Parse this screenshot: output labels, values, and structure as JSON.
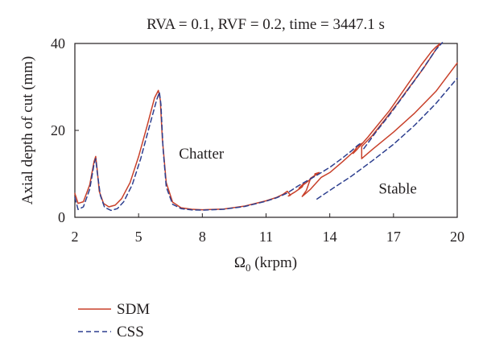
{
  "chart_data": {
    "type": "line",
    "title": "RVA = 0.1, RVF = 0.2, time = 3447.1 s",
    "xlabel_main": "Ω",
    "xlabel_sub": "0",
    "xlabel_unit": " (krpm)",
    "ylabel": "Axial depth of cut (mm)",
    "xlim": [
      2,
      20
    ],
    "ylim": [
      0,
      40
    ],
    "xticks": [
      2,
      5,
      8,
      11,
      14,
      17,
      20
    ],
    "yticks": [
      0,
      20,
      40
    ],
    "xtick_labels": [
      "2",
      "5",
      "8",
      "11",
      "14",
      "17",
      "20"
    ],
    "ytick_labels": [
      "0",
      "20",
      "40"
    ],
    "grid": false,
    "legend_position": "bottom-left",
    "annotations": [
      {
        "text": "Chatter",
        "x": 6.9,
        "y": 13.5
      },
      {
        "text": "Stable",
        "x": 16.3,
        "y": 5.5
      }
    ],
    "series": [
      {
        "name": "SDM",
        "color": "#c8402a",
        "dash": "solid",
        "segments": [
          [
            [
              2.0,
              5.5
            ],
            [
              2.15,
              3.2
            ],
            [
              2.4,
              3.6
            ],
            [
              2.7,
              7.5
            ],
            [
              2.9,
              12.8
            ],
            [
              2.98,
              14.0
            ],
            [
              3.05,
              11.0
            ],
            [
              3.15,
              6.0
            ],
            [
              3.35,
              3.2
            ],
            [
              3.6,
              2.4
            ],
            [
              3.9,
              2.8
            ],
            [
              4.2,
              4.3
            ],
            [
              4.6,
              8.0
            ],
            [
              5.0,
              14.0
            ],
            [
              5.4,
              21.0
            ],
            [
              5.75,
              27.5
            ],
            [
              5.93,
              29.2
            ],
            [
              6.02,
              27.0
            ],
            [
              6.12,
              18.0
            ],
            [
              6.3,
              8.0
            ],
            [
              6.6,
              3.5
            ],
            [
              7.0,
              2.2
            ],
            [
              7.5,
              1.85
            ],
            [
              8.0,
              1.75
            ],
            [
              9.0,
              1.9
            ],
            [
              10.0,
              2.6
            ],
            [
              11.0,
              3.8
            ],
            [
              11.5,
              4.6
            ],
            [
              11.8,
              5.3
            ],
            [
              12.0,
              6.0
            ],
            [
              12.15,
              5.1
            ],
            [
              12.05,
              4.9
            ],
            [
              12.35,
              5.8
            ],
            [
              12.7,
              7.0
            ],
            [
              12.8,
              7.9
            ],
            [
              12.55,
              6.7
            ],
            [
              12.9,
              8.0
            ],
            [
              13.3,
              9.6
            ],
            [
              13.3,
              10.0
            ],
            [
              13.5,
              10.3
            ],
            [
              13.1,
              9.0
            ],
            [
              12.9,
              6.2
            ],
            [
              12.7,
              4.8
            ],
            [
              13.1,
              6.5
            ],
            [
              13.6,
              9.2
            ],
            [
              14.0,
              10.3
            ],
            [
              14.6,
              12.8
            ],
            [
              15.1,
              15.0
            ],
            [
              15.2,
              15.6
            ],
            [
              15.3,
              16.3
            ],
            [
              15.5,
              17.0
            ],
            [
              15.3,
              15.7
            ],
            [
              15.1,
              14.7
            ],
            [
              15.35,
              16.0
            ],
            [
              15.8,
              18.5
            ],
            [
              16.3,
              21.5
            ],
            [
              16.8,
              24.5
            ],
            [
              17.3,
              28.0
            ],
            [
              17.8,
              31.5
            ],
            [
              18.3,
              35.0
            ],
            [
              18.8,
              38.2
            ],
            [
              19.0,
              39.2
            ],
            [
              19.2,
              40.0
            ],
            [
              19.05,
              39.0
            ],
            [
              18.4,
              34.2
            ],
            [
              17.8,
              30.3
            ],
            [
              17.2,
              26.3
            ],
            [
              16.6,
              22.5
            ],
            [
              16.0,
              18.8
            ],
            [
              15.5,
              16.3
            ],
            [
              15.5,
              13.5
            ],
            [
              16.0,
              15.6
            ],
            [
              17.0,
              19.6
            ],
            [
              18.0,
              24.0
            ],
            [
              19.0,
              29.0
            ],
            [
              20.0,
              35.5
            ]
          ]
        ]
      },
      {
        "name": "CSS",
        "color": "#2d3f8f",
        "dash": "dashed",
        "segments": [
          [
            [
              2.0,
              4.6
            ],
            [
              2.15,
              1.8
            ],
            [
              2.4,
              2.4
            ],
            [
              2.7,
              6.5
            ],
            [
              2.9,
              12.2
            ],
            [
              2.98,
              13.5
            ],
            [
              3.05,
              10.5
            ],
            [
              3.2,
              5.0
            ],
            [
              3.4,
              2.3
            ],
            [
              3.7,
              1.6
            ],
            [
              4.0,
              2.0
            ],
            [
              4.3,
              3.6
            ],
            [
              4.7,
              7.5
            ],
            [
              5.1,
              13.5
            ],
            [
              5.5,
              20.8
            ],
            [
              5.85,
              27.0
            ],
            [
              5.98,
              28.8
            ],
            [
              6.05,
              26.0
            ],
            [
              6.15,
              16.0
            ],
            [
              6.3,
              7.0
            ],
            [
              6.6,
              3.0
            ],
            [
              7.0,
              2.0
            ],
            [
              7.5,
              1.7
            ],
            [
              8.0,
              1.65
            ],
            [
              9.0,
              1.85
            ],
            [
              10.0,
              2.5
            ],
            [
              11.0,
              3.7
            ],
            [
              11.5,
              4.5
            ],
            [
              12.0,
              5.6
            ],
            [
              12.5,
              7.2
            ],
            [
              13.0,
              8.6
            ],
            [
              13.5,
              10.0
            ],
            [
              14.0,
              11.5
            ],
            [
              14.5,
              13.3
            ],
            [
              15.0,
              15.2
            ],
            [
              15.3,
              16.5
            ],
            [
              15.5,
              17.2
            ]
          ],
          [
            [
              13.4,
              4.2
            ],
            [
              14.0,
              6.2
            ],
            [
              15.0,
              9.4
            ],
            [
              16.0,
              13.0
            ],
            [
              17.0,
              16.8
            ],
            [
              18.0,
              21.2
            ],
            [
              19.0,
              26.2
            ],
            [
              20.0,
              32.0
            ]
          ],
          [
            [
              15.6,
              15.8
            ],
            [
              16.2,
              19.8
            ],
            [
              16.8,
              23.5
            ],
            [
              17.4,
              27.5
            ],
            [
              18.0,
              31.5
            ],
            [
              18.5,
              35.0
            ],
            [
              19.0,
              38.6
            ],
            [
              19.3,
              40.2
            ]
          ]
        ]
      }
    ]
  }
}
